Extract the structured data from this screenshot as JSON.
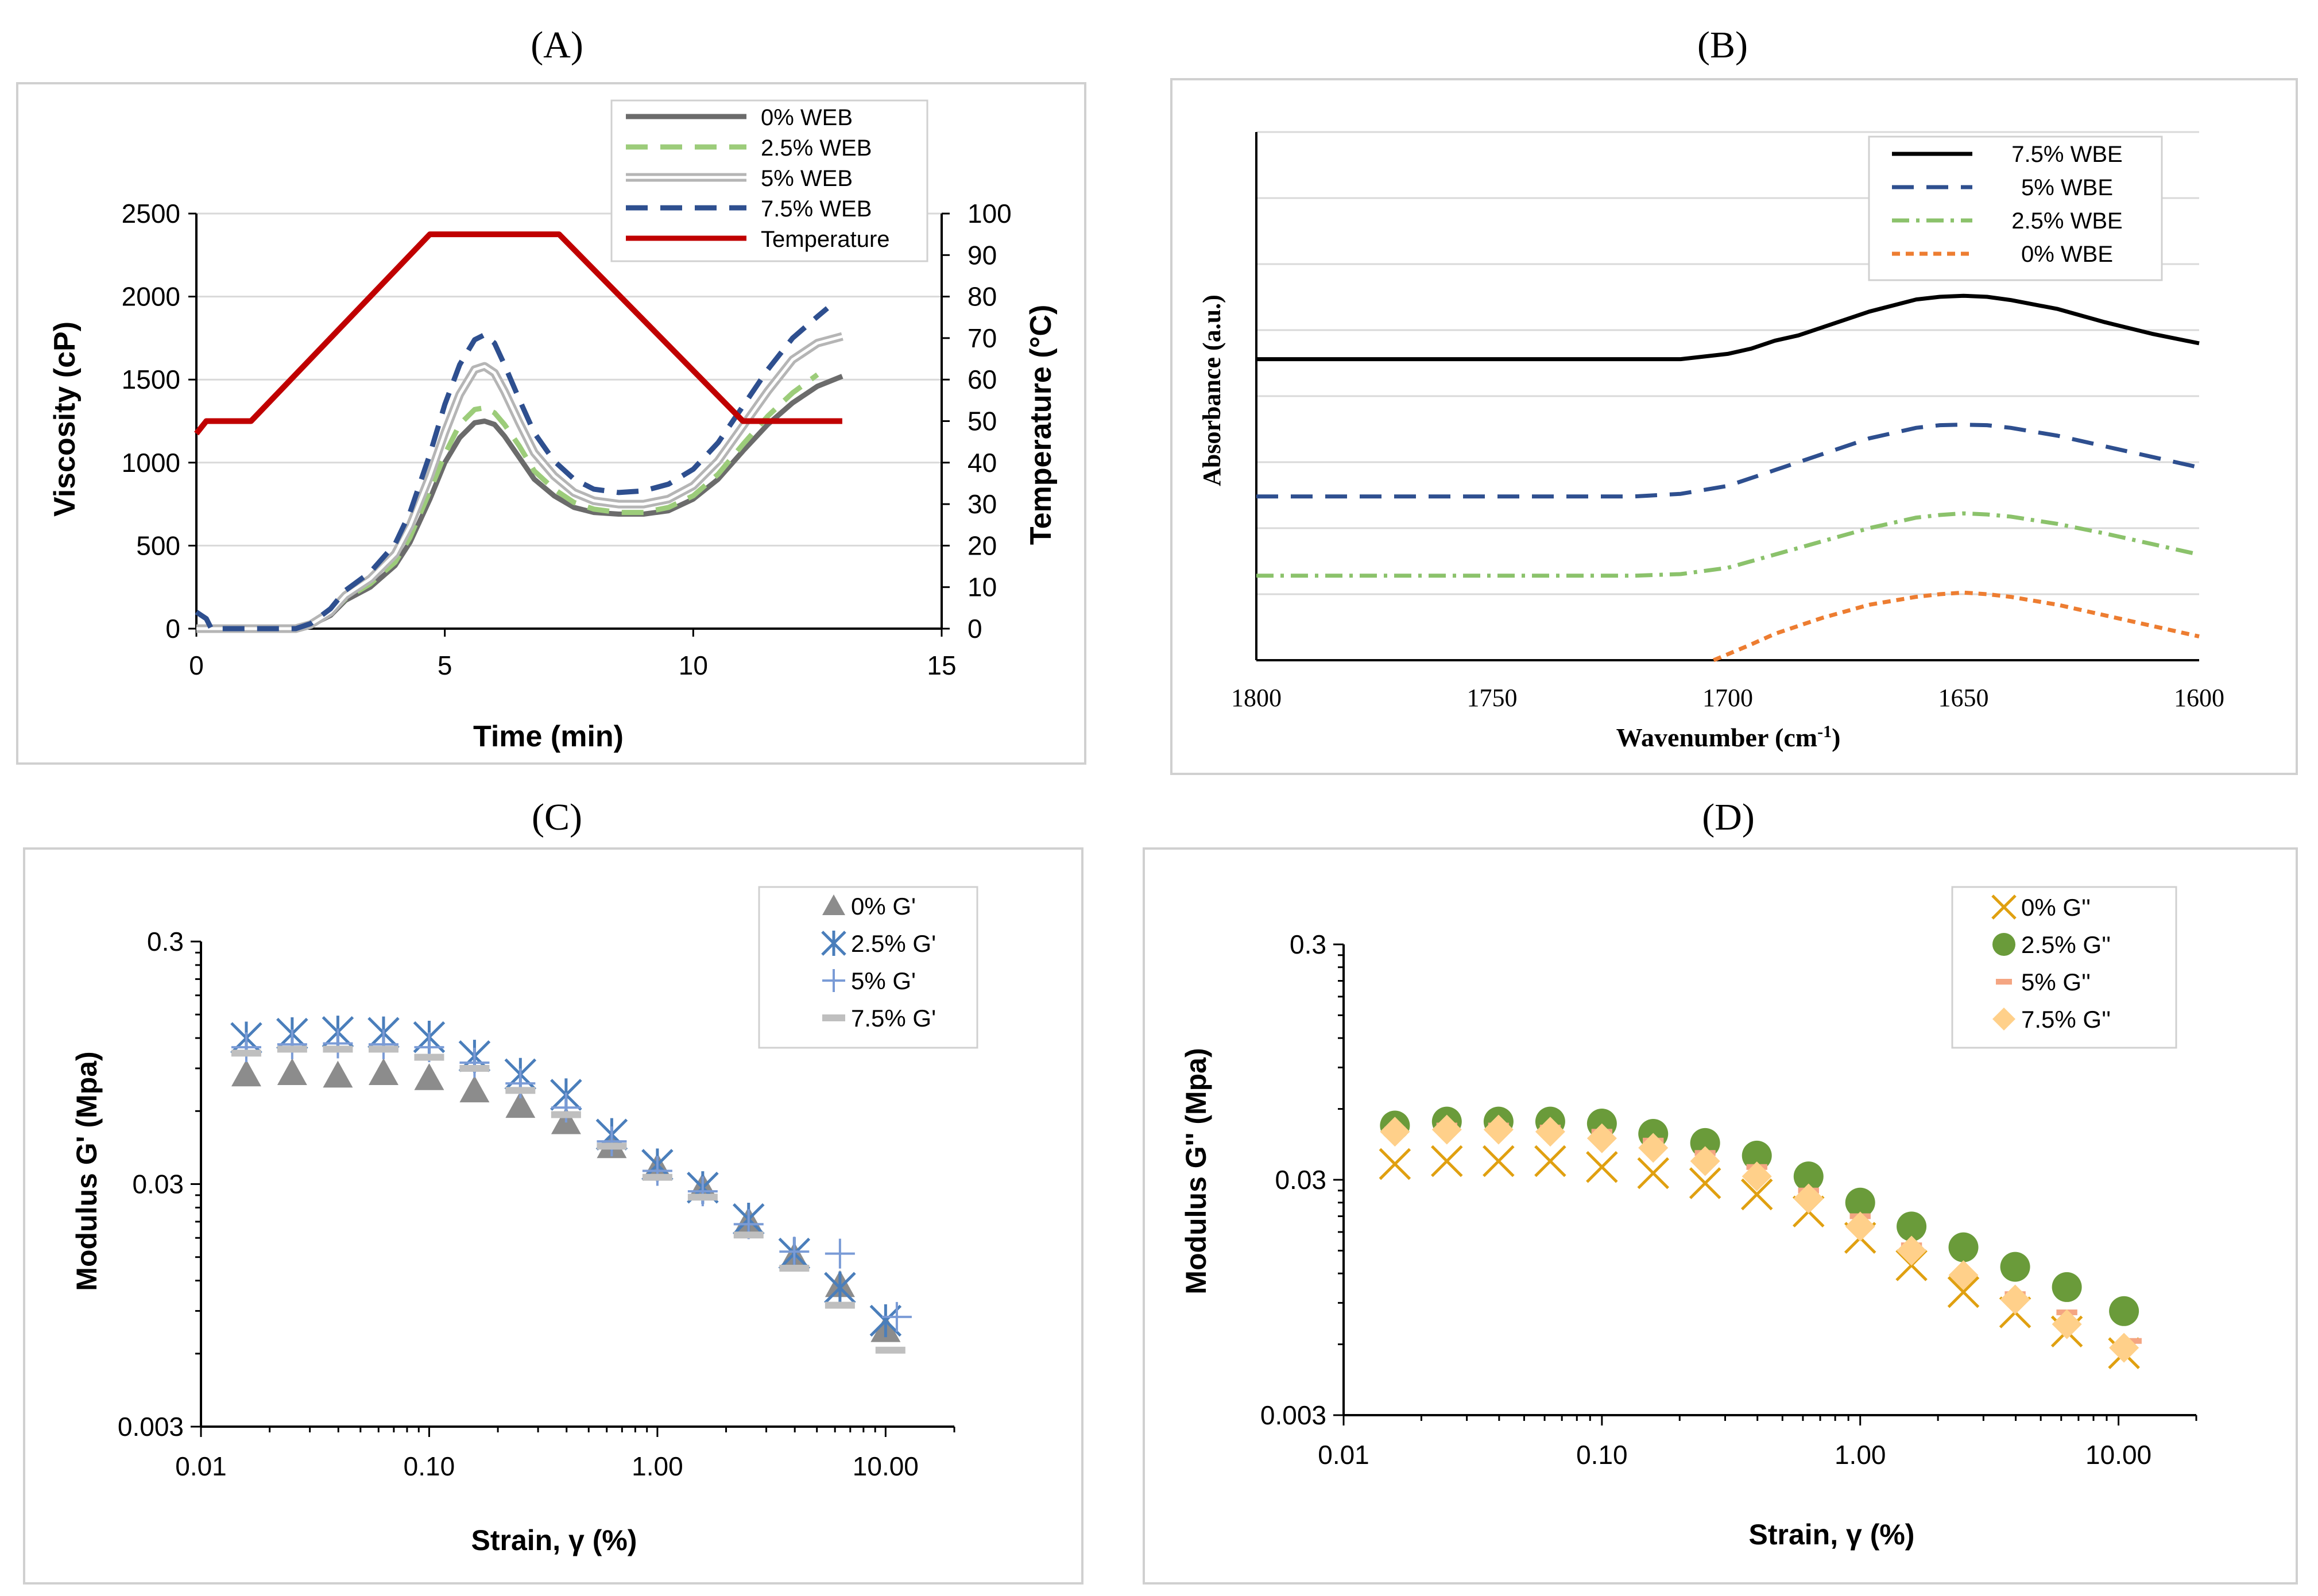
{
  "colors": {
    "gray": "#6b6b6b",
    "lightgreen": "#9ccc7a",
    "silver": "#b5b5b5",
    "navy": "#2e4f8f",
    "red": "#c00000",
    "black": "#000000",
    "blue": "#2e4f8f",
    "green_dashdot": "#8bc26b",
    "orange": "#ed7d31",
    "tri": "#8c8c8c",
    "star": "#4a7ebb",
    "plus": "#7a9bd6",
    "bar": "#bfbfbf",
    "xgold": "#e0a010",
    "dgreen": "#6a9b3a",
    "salmon": "#f4a582",
    "peach": "#ffd08a",
    "box": "#d0d0d0",
    "axis": "#000000"
  },
  "chart_data": [
    {
      "id": "A",
      "panel_label": "(A)",
      "type": "line",
      "xlabel": "Time (min)",
      "ylabel": "Viscosity (cP)",
      "y2label": "Temperature (°C)",
      "xlim": [
        0,
        15
      ],
      "ylim": [
        0,
        2500
      ],
      "y2lim": [
        0,
        100
      ],
      "grid": true,
      "xticks": [
        "0",
        "5",
        "10",
        "15"
      ],
      "xtick_values": [
        0,
        5,
        10,
        15
      ],
      "yticks": [
        "0",
        "500",
        "1000",
        "1500",
        "2000",
        "2500"
      ],
      "ytick_values": [
        0,
        500,
        1000,
        1500,
        2000,
        2500
      ],
      "y2ticks": [
        "0",
        "10",
        "20",
        "30",
        "40",
        "50",
        "60",
        "70",
        "80",
        "90",
        "100"
      ],
      "y2tick_values": [
        0,
        10,
        20,
        30,
        40,
        50,
        60,
        70,
        80,
        90,
        100
      ],
      "legend_position": "top-right",
      "series": [
        {
          "name": "0% WEB",
          "color": "#6b6b6b",
          "style": "solid",
          "axis": "left",
          "x": [
            0,
            0.5,
            1,
            2,
            2.3,
            2.7,
            3,
            3.5,
            4,
            4.3,
            4.7,
            5,
            5.3,
            5.6,
            5.8,
            6,
            6.2,
            6.5,
            6.8,
            7.2,
            7.6,
            8,
            8.5,
            9,
            9.5,
            10,
            10.5,
            11,
            11.5,
            12,
            12.5,
            13
          ],
          "y": [
            0,
            0,
            0,
            0,
            20,
            80,
            170,
            250,
            380,
            520,
            780,
            1000,
            1150,
            1240,
            1250,
            1230,
            1160,
            1030,
            900,
            800,
            730,
            700,
            690,
            690,
            710,
            780,
            900,
            1070,
            1230,
            1360,
            1460,
            1520
          ]
        },
        {
          "name": "2.5% WEB",
          "color": "#9ccc7a",
          "style": "dashed",
          "axis": "left",
          "x": [
            0,
            0.5,
            1,
            2,
            2.3,
            2.7,
            3,
            3.5,
            4,
            4.3,
            4.7,
            5,
            5.3,
            5.6,
            5.8,
            6,
            6.2,
            6.5,
            6.8,
            7.2,
            7.6,
            8,
            8.5,
            9,
            9.5,
            10,
            10.5,
            11,
            11.5,
            12,
            12.5
          ],
          "y": [
            0,
            0,
            0,
            0,
            25,
            90,
            180,
            270,
            400,
            550,
            830,
            1050,
            1230,
            1320,
            1330,
            1300,
            1230,
            1100,
            950,
            840,
            760,
            720,
            700,
            700,
            730,
            800,
            930,
            1110,
            1280,
            1420,
            1530
          ]
        },
        {
          "name": "5% WEB",
          "color": "#b5b5b5",
          "style": "double",
          "axis": "left",
          "x": [
            0,
            0.5,
            1,
            2,
            2.3,
            2.7,
            3,
            3.5,
            4,
            4.3,
            4.7,
            5,
            5.3,
            5.6,
            5.8,
            6,
            6.2,
            6.5,
            6.8,
            7.2,
            7.6,
            8,
            8.5,
            9,
            9.5,
            10,
            10.5,
            11,
            11.5,
            12,
            12.5,
            13
          ],
          "y": [
            0,
            0,
            0,
            0,
            25,
            100,
            200,
            300,
            450,
            620,
            920,
            1180,
            1410,
            1560,
            1580,
            1540,
            1430,
            1240,
            1060,
            920,
            820,
            770,
            750,
            750,
            780,
            860,
            1010,
            1220,
            1430,
            1620,
            1720,
            1760
          ]
        },
        {
          "name": "7.5% WEB",
          "color": "#2e4f8f",
          "style": "dashed",
          "axis": "left",
          "x": [
            0,
            0.2,
            0.3,
            0.5,
            1,
            2,
            2.3,
            2.7,
            3,
            3.5,
            4,
            4.3,
            4.7,
            5,
            5.3,
            5.6,
            5.8,
            6,
            6.2,
            6.5,
            6.8,
            7.2,
            7.6,
            8,
            8.5,
            9,
            9.5,
            10,
            10.5,
            11,
            11.5,
            12,
            12.5,
            12.7
          ],
          "y": [
            100,
            60,
            0,
            0,
            0,
            0,
            30,
            120,
            230,
            340,
            510,
            700,
            1050,
            1350,
            1590,
            1740,
            1770,
            1720,
            1590,
            1380,
            1180,
            1010,
            900,
            840,
            820,
            830,
            870,
            960,
            1120,
            1340,
            1560,
            1750,
            1880,
            1930
          ]
        },
        {
          "name": "Temperature",
          "color": "#c00000",
          "style": "solid",
          "axis": "right",
          "x": [
            0,
            0.2,
            1.1,
            4.7,
            5.0,
            7.3,
            11,
            13
          ],
          "y": [
            47,
            50,
            50,
            95,
            95,
            95,
            50,
            50
          ]
        }
      ]
    },
    {
      "id": "B",
      "panel_label": "(B)",
      "type": "line",
      "xlabel": "Wavenumber (cm",
      "xlabel_sup": "-1",
      "xlabel_end": ")",
      "ylabel": "Absorbance (a.u.)",
      "xlim": [
        1800,
        1600
      ],
      "ylim": [
        0,
        1
      ],
      "grid": true,
      "xticks": [
        "1800",
        "1750",
        "1700",
        "1650",
        "1600"
      ],
      "xtick_values": [
        1800,
        1750,
        1700,
        1650,
        1600
      ],
      "legend_position": "top-right",
      "series": [
        {
          "name": "7.5% WBE",
          "color": "#000000",
          "style": "solid",
          "x": [
            1800,
            1780,
            1760,
            1740,
            1720,
            1710,
            1700,
            1695,
            1690,
            1685,
            1680,
            1670,
            1660,
            1655,
            1650,
            1645,
            1640,
            1630,
            1620,
            1610,
            1600
          ],
          "y": [
            0.57,
            0.57,
            0.57,
            0.57,
            0.57,
            0.57,
            0.58,
            0.59,
            0.605,
            0.615,
            0.63,
            0.66,
            0.683,
            0.688,
            0.69,
            0.688,
            0.682,
            0.665,
            0.64,
            0.618,
            0.6
          ]
        },
        {
          "name": "5% WBE",
          "color": "#2e4f8f",
          "style": "dashed",
          "x": [
            1800,
            1780,
            1760,
            1740,
            1720,
            1710,
            1700,
            1690,
            1680,
            1670,
            1660,
            1655,
            1650,
            1645,
            1640,
            1630,
            1620,
            1610,
            1600
          ],
          "y": [
            0.31,
            0.31,
            0.31,
            0.31,
            0.31,
            0.315,
            0.33,
            0.36,
            0.39,
            0.42,
            0.44,
            0.445,
            0.446,
            0.445,
            0.44,
            0.425,
            0.405,
            0.385,
            0.365
          ]
        },
        {
          "name": "2.5% WBE",
          "color": "#8bc26b",
          "style": "dashdot",
          "x": [
            1800,
            1780,
            1760,
            1740,
            1720,
            1710,
            1700,
            1690,
            1680,
            1670,
            1660,
            1655,
            1650,
            1645,
            1640,
            1630,
            1620,
            1610,
            1600
          ],
          "y": [
            0.16,
            0.16,
            0.16,
            0.16,
            0.16,
            0.163,
            0.175,
            0.2,
            0.225,
            0.25,
            0.27,
            0.275,
            0.278,
            0.276,
            0.272,
            0.258,
            0.24,
            0.22,
            0.2
          ]
        },
        {
          "name": "0% WBE",
          "color": "#ed7d31",
          "style": "dotted",
          "x": [
            1703,
            1695,
            1690,
            1680,
            1670,
            1660,
            1655,
            1650,
            1645,
            1640,
            1630,
            1620,
            1610,
            1600
          ],
          "y": [
            0.0,
            0.03,
            0.05,
            0.08,
            0.105,
            0.12,
            0.125,
            0.128,
            0.125,
            0.12,
            0.105,
            0.085,
            0.065,
            0.045
          ]
        }
      ]
    },
    {
      "id": "C",
      "panel_label": "(C)",
      "type": "scatter",
      "xlabel": "Strain, γ (%)",
      "ylabel": "Modulus G' (Mpa)",
      "xscale": "log",
      "yscale": "log",
      "xlim": [
        0.01,
        20
      ],
      "ylim": [
        0.003,
        0.3
      ],
      "xticks": [
        "0.01",
        "0.10",
        "1.00",
        "10.00"
      ],
      "xtick_values": [
        0.01,
        0.1,
        1,
        10
      ],
      "yticks": [
        "0.003",
        "0.03",
        "0.3"
      ],
      "ytick_values": [
        0.003,
        0.03,
        0.3
      ],
      "legend_position": "top-right",
      "series": [
        {
          "name": "0% G'",
          "marker": "triangle",
          "color": "#8c8c8c",
          "x": [
            0.0158,
            0.0251,
            0.0398,
            0.0631,
            0.1,
            0.158,
            0.251,
            0.398,
            0.631,
            1.0,
            1.58,
            2.51,
            3.98,
            6.31,
            10
          ],
          "y": [
            0.085,
            0.086,
            0.084,
            0.086,
            0.082,
            0.073,
            0.063,
            0.054,
            0.043,
            0.035,
            0.029,
            0.021,
            0.015,
            0.0115,
            0.0075
          ]
        },
        {
          "name": "2.5% G'",
          "marker": "star",
          "color": "#4a7ebb",
          "x": [
            0.0158,
            0.0251,
            0.0398,
            0.0631,
            0.1,
            0.158,
            0.251,
            0.398,
            0.631,
            1.0,
            1.58,
            2.51,
            3.98,
            6.31,
            10
          ],
          "y": [
            0.12,
            0.125,
            0.127,
            0.126,
            0.121,
            0.101,
            0.085,
            0.07,
            0.048,
            0.036,
            0.029,
            0.0215,
            0.0155,
            0.0112,
            0.0082
          ]
        },
        {
          "name": "5% G'",
          "marker": "plus",
          "color": "#7a9bd6",
          "x": [
            0.0158,
            0.0251,
            0.0398,
            0.0631,
            0.1,
            0.158,
            0.251,
            0.398,
            0.631,
            1.0,
            1.58,
            2.51,
            3.98,
            6.31,
            11.2
          ],
          "y": [
            0.11,
            0.113,
            0.114,
            0.113,
            0.11,
            0.095,
            0.078,
            0.062,
            0.045,
            0.034,
            0.028,
            0.0205,
            0.0158,
            0.0155,
            0.0085
          ]
        },
        {
          "name": "7.5% G'",
          "marker": "bar",
          "color": "#bfbfbf",
          "x": [
            0.0158,
            0.0251,
            0.0398,
            0.0631,
            0.1,
            0.158,
            0.251,
            0.398,
            0.631,
            1.0,
            1.58,
            2.51,
            3.98,
            6.31,
            10.5
          ],
          "y": [
            0.104,
            0.108,
            0.108,
            0.108,
            0.1,
            0.09,
            0.073,
            0.058,
            0.043,
            0.032,
            0.0265,
            0.0185,
            0.0135,
            0.0095,
            0.0062
          ]
        }
      ]
    },
    {
      "id": "D",
      "panel_label": "(D)",
      "type": "scatter",
      "xlabel": "Strain, γ (%)",
      "ylabel": "Modulus G'' (Mpa)",
      "xscale": "log",
      "yscale": "log",
      "xlim": [
        0.01,
        20
      ],
      "ylim": [
        0.003,
        0.3
      ],
      "xticks": [
        "0.01",
        "0.10",
        "1.00",
        "10.00"
      ],
      "xtick_values": [
        0.01,
        0.1,
        1,
        10
      ],
      "yticks": [
        "0.003",
        "0.03",
        "0.3"
      ],
      "ytick_values": [
        0.003,
        0.03,
        0.3
      ],
      "legend_position": "top-right",
      "series": [
        {
          "name": "0% G''",
          "marker": "x",
          "color": "#e0a010",
          "x": [
            0.0158,
            0.0251,
            0.0398,
            0.0631,
            0.1,
            0.158,
            0.251,
            0.398,
            0.631,
            1.0,
            1.58,
            2.51,
            3.98,
            6.31,
            10.5
          ],
          "y": [
            0.035,
            0.036,
            0.036,
            0.036,
            0.034,
            0.032,
            0.029,
            0.026,
            0.022,
            0.017,
            0.013,
            0.01,
            0.0082,
            0.0068,
            0.0055
          ]
        },
        {
          "name": "2.5%  G''",
          "marker": "circle",
          "color": "#6a9b3a",
          "x": [
            0.0158,
            0.0251,
            0.0398,
            0.0631,
            0.1,
            0.158,
            0.251,
            0.398,
            0.631,
            1.0,
            1.58,
            2.51,
            3.98,
            6.31,
            10.5
          ],
          "y": [
            0.051,
            0.053,
            0.053,
            0.053,
            0.052,
            0.047,
            0.043,
            0.038,
            0.031,
            0.024,
            0.019,
            0.0155,
            0.0128,
            0.0105,
            0.0083
          ]
        },
        {
          "name": "5% G''",
          "marker": "dash",
          "color": "#f4a582",
          "x": [
            0.0158,
            0.0251,
            0.0398,
            0.0631,
            0.1,
            0.158,
            0.251,
            0.398,
            0.631,
            1.0,
            1.58,
            2.51,
            3.98,
            6.31,
            11.2
          ],
          "y": [
            0.049,
            0.051,
            0.051,
            0.05,
            0.048,
            0.044,
            0.039,
            0.034,
            0.027,
            0.021,
            0.0158,
            0.0118,
            0.0098,
            0.0082,
            0.0062
          ]
        },
        {
          "name": "7.5%  G''",
          "marker": "diamond",
          "color": "#ffd08a",
          "x": [
            0.0158,
            0.0251,
            0.0398,
            0.0631,
            0.1,
            0.158,
            0.251,
            0.398,
            0.631,
            1.0,
            1.58,
            2.51,
            3.98,
            6.31,
            10.5
          ],
          "y": [
            0.048,
            0.049,
            0.049,
            0.048,
            0.045,
            0.041,
            0.036,
            0.031,
            0.025,
            0.019,
            0.015,
            0.0118,
            0.0093,
            0.0073,
            0.0058
          ]
        }
      ]
    }
  ]
}
